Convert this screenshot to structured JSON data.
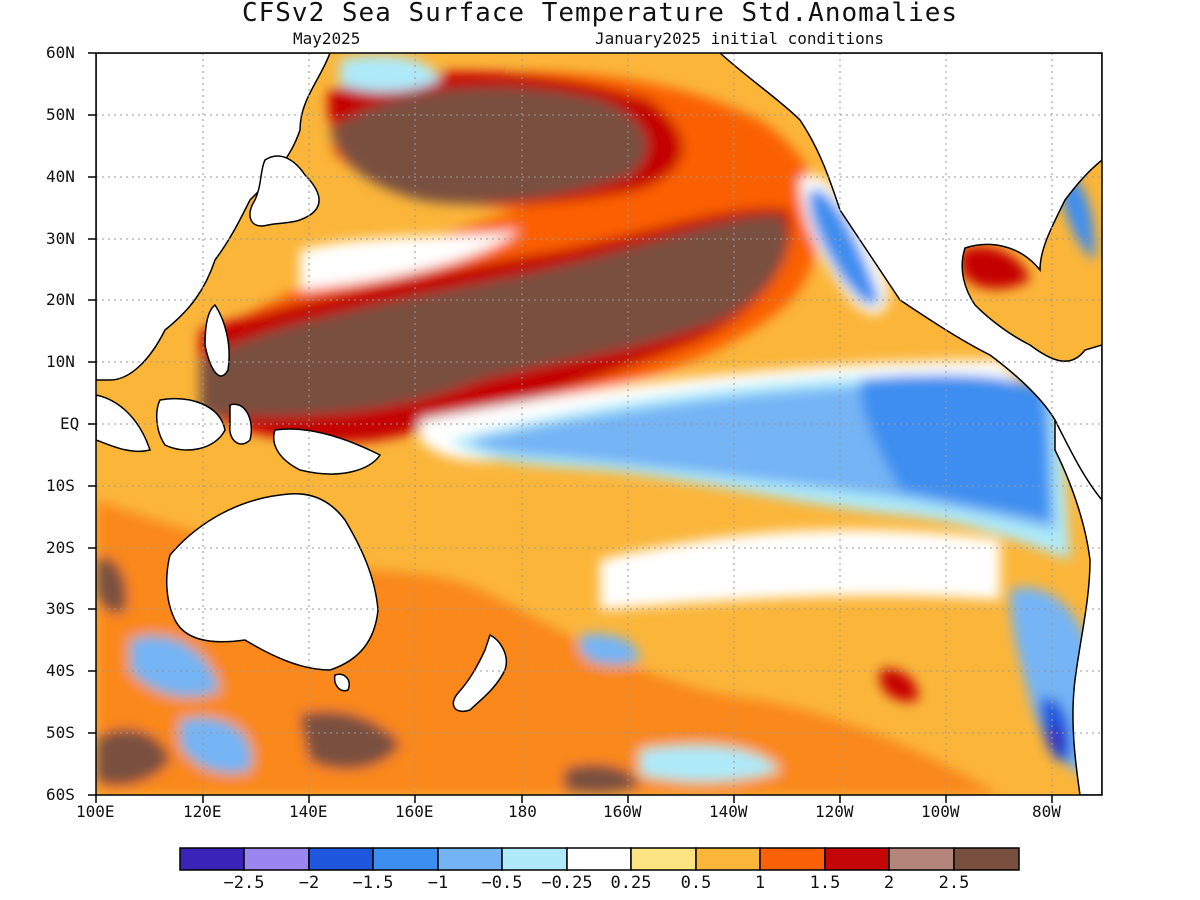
{
  "title": "CFSv2 Sea Surface Temperature Std.Anomalies",
  "valid_month": "May2025",
  "initial_conditions": "January2025 initial conditions",
  "map": {
    "lat_labels": [
      "60N",
      "50N",
      "40N",
      "30N",
      "20N",
      "10N",
      "EQ",
      "10S",
      "20S",
      "30S",
      "40S",
      "50S",
      "60S"
    ],
    "lon_labels": [
      "100E",
      "120E",
      "140E",
      "160E",
      "180",
      "160W",
      "140W",
      "120W",
      "100W",
      "80W"
    ],
    "land_color": "#ffffff",
    "coast_color": "#000000",
    "grid_style": "dotted"
  },
  "colorbar": {
    "colors": [
      "#3a24b8",
      "#9a86f0",
      "#1f58de",
      "#3c8ef0",
      "#74b4f5",
      "#aeeafa",
      "#ffffff",
      "#fde482",
      "#fbb63a",
      "#fa6106",
      "#c40606",
      "#b4857b",
      "#79503f"
    ],
    "labels": [
      "-2.5",
      "-2",
      "-1.5",
      "-1",
      "-0.5",
      "-0.25",
      "0.25",
      "0.5",
      "1",
      "1.5",
      "2",
      "2.5"
    ]
  }
}
